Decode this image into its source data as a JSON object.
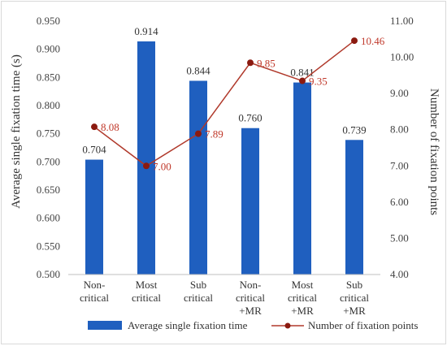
{
  "chart_data": {
    "type": "bar",
    "categories": [
      [
        "Non-",
        "critical"
      ],
      [
        "Most",
        "critical"
      ],
      [
        "Sub",
        "critical"
      ],
      [
        "Non-",
        "critical",
        "+MR"
      ],
      [
        "Most",
        "critical",
        "+MR"
      ],
      [
        "Sub",
        "critical",
        "+MR"
      ]
    ],
    "series": [
      {
        "name": "Average single fixation time",
        "type": "bar",
        "axis": "left",
        "color": "#1f5fbf",
        "values": [
          0.704,
          0.914,
          0.844,
          0.76,
          0.841,
          0.739
        ],
        "labels": [
          "0.704",
          "0.914",
          "0.844",
          "0.760",
          "0.841",
          "0.739"
        ]
      },
      {
        "name": "Number of fixation points",
        "type": "line",
        "axis": "right",
        "color": "#b0392b",
        "marker_color": "#8b1a10",
        "values": [
          8.08,
          7.0,
          7.89,
          9.85,
          9.35,
          10.46
        ],
        "labels": [
          "8.08",
          "7.00",
          "7.89",
          "9.85",
          "9.35",
          "10.46"
        ]
      }
    ],
    "ylabel": "Average single fixation time (s)",
    "y2label": "Number of fixation points",
    "ylim": [
      0.5,
      0.95
    ],
    "y2lim": [
      4.0,
      11.0
    ],
    "yticks": [
      "0.500",
      "0.550",
      "0.600",
      "0.650",
      "0.700",
      "0.750",
      "0.800",
      "0.850",
      "0.900",
      "0.950"
    ],
    "y2ticks": [
      "4.00",
      "5.00",
      "6.00",
      "7.00",
      "8.00",
      "9.00",
      "10.00",
      "11.00"
    ],
    "grid": false,
    "legend_position": "bottom"
  }
}
